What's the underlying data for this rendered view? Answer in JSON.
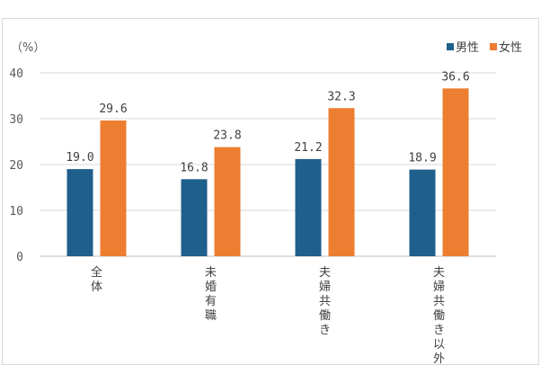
{
  "chart_data": {
    "type": "bar",
    "unit_label": "（%）",
    "categories": [
      "全体",
      "未婚有職",
      "夫婦共働き",
      "夫婦共働き以外"
    ],
    "series": [
      {
        "name": "男性",
        "values": [
          19.0,
          16.8,
          21.2,
          18.9
        ],
        "color": "#1f5f8b"
      },
      {
        "name": "女性",
        "values": [
          29.6,
          23.8,
          32.3,
          36.6
        ],
        "color": "#ed7d31"
      }
    ],
    "ylim": [
      0,
      40
    ],
    "yticks": [
      0,
      10,
      20,
      30,
      40
    ],
    "grid": true,
    "legend_position": "top-right"
  }
}
